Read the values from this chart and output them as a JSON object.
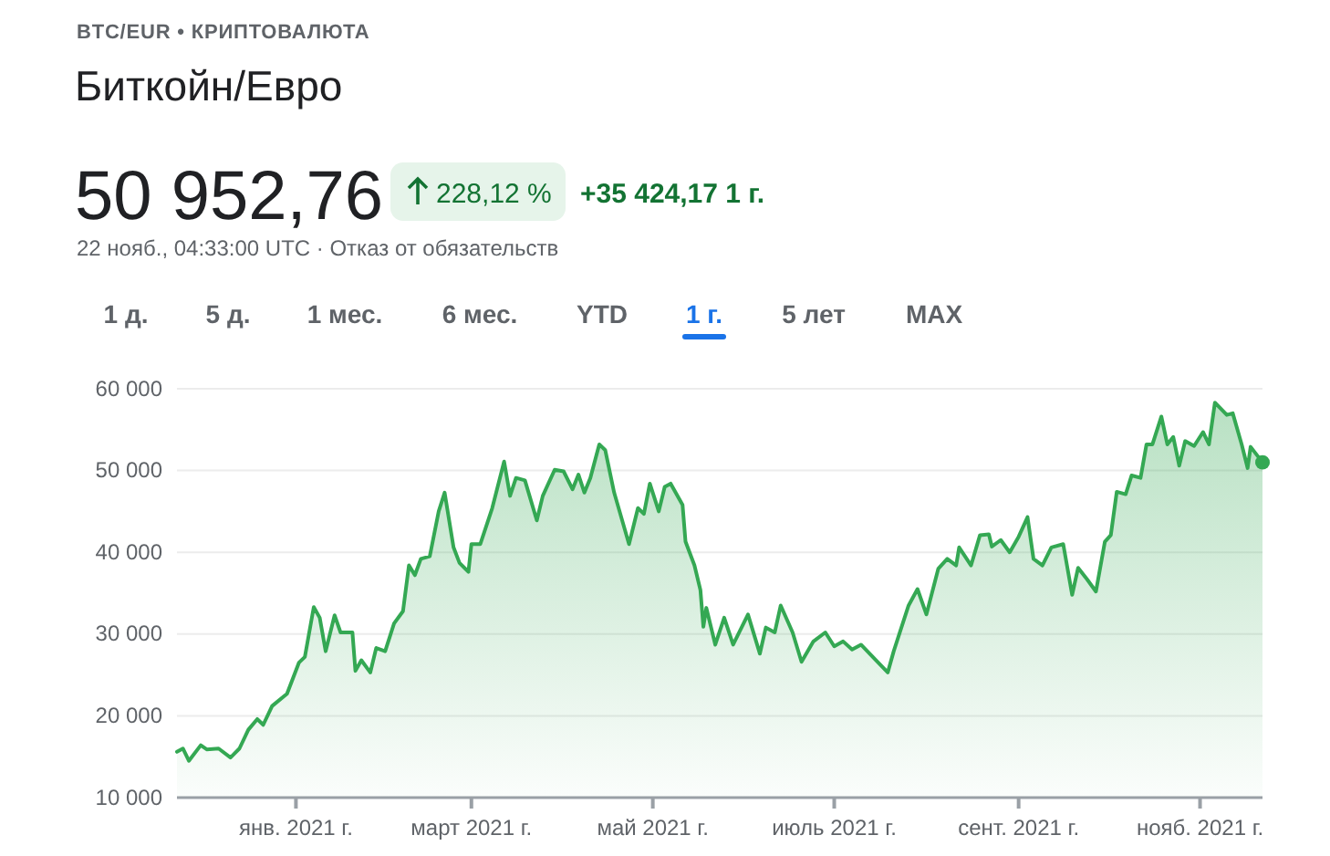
{
  "chart_data": {
    "type": "area",
    "title": "Биткойн/Евро",
    "subtitle": "BTC/EUR • КРИПТОВАЛЮТА",
    "annotations": [
      "50 952,76",
      "228,12 %",
      "+35 424,17 1 г.",
      "22 нояб., 04:33:00 UTC · Отказ от обязательств",
      "1 д.",
      "5 д.",
      "1 мес.",
      "6 мес.",
      "YTD",
      "1 г.",
      "5 лет",
      "MAX"
    ],
    "xlim": [
      "2020-11-22",
      "2021-11-22"
    ],
    "xticks": [
      {
        "value": "2021-01-01",
        "label": "янв. 2021 г."
      },
      {
        "value": "2021-03-01",
        "label": "март 2021 г."
      },
      {
        "value": "2021-05-01",
        "label": "май 2021 г."
      },
      {
        "value": "2021-07-01",
        "label": "июль 2021 г."
      },
      {
        "value": "2021-09-01",
        "label": "сент. 2021 г."
      },
      {
        "value": "2021-11-01",
        "label": "нояб. 2021 г."
      }
    ],
    "ylim": [
      10000,
      60000
    ],
    "yticks": [
      {
        "value": 10000,
        "label": "10 000"
      },
      {
        "value": 20000,
        "label": "20 000"
      },
      {
        "value": 30000,
        "label": "30 000"
      },
      {
        "value": 40000,
        "label": "40 000"
      },
      {
        "value": 50000,
        "label": "50 000"
      },
      {
        "value": 60000,
        "label": "60 000"
      }
    ],
    "grid": "y",
    "marker": "none",
    "line_style": "solid",
    "series": [
      {
        "color": "#34a853",
        "x": [
          "2020-11-22",
          "2020-11-24",
          "2020-11-26",
          "2020-11-30",
          "2020-12-02",
          "2020-12-06",
          "2020-12-10",
          "2020-12-13",
          "2020-12-16",
          "2020-12-19",
          "2020-12-21",
          "2020-12-24",
          "2020-12-29",
          "2021-01-02",
          "2021-01-04",
          "2021-01-07",
          "2021-01-09",
          "2021-01-11",
          "2021-01-14",
          "2021-01-16",
          "2021-01-20",
          "2021-01-21",
          "2021-01-23",
          "2021-01-26",
          "2021-01-28",
          "2021-01-31",
          "2021-02-03",
          "2021-02-06",
          "2021-02-08",
          "2021-02-10",
          "2021-02-12",
          "2021-02-15",
          "2021-02-18",
          "2021-02-20",
          "2021-02-23",
          "2021-02-25",
          "2021-02-28",
          "2021-03-01",
          "2021-03-04",
          "2021-03-08",
          "2021-03-12",
          "2021-03-14",
          "2021-03-16",
          "2021-03-19",
          "2021-03-23",
          "2021-03-25",
          "2021-03-29",
          "2021-04-01",
          "2021-04-04",
          "2021-04-06",
          "2021-04-08",
          "2021-04-10",
          "2021-04-13",
          "2021-04-15",
          "2021-04-18",
          "2021-04-23",
          "2021-04-26",
          "2021-04-28",
          "2021-04-30",
          "2021-05-03",
          "2021-05-05",
          "2021-05-07",
          "2021-05-11",
          "2021-05-12",
          "2021-05-15",
          "2021-05-17",
          "2021-05-18",
          "2021-05-19",
          "2021-05-22",
          "2021-05-25",
          "2021-05-28",
          "2021-06-02",
          "2021-06-06",
          "2021-06-08",
          "2021-06-11",
          "2021-06-13",
          "2021-06-17",
          "2021-06-20",
          "2021-06-24",
          "2021-06-28",
          "2021-07-01",
          "2021-07-04",
          "2021-07-07",
          "2021-07-10",
          "2021-07-15",
          "2021-07-19",
          "2021-07-21",
          "2021-07-26",
          "2021-07-29",
          "2021-08-01",
          "2021-08-05",
          "2021-08-08",
          "2021-08-11",
          "2021-08-12",
          "2021-08-16",
          "2021-08-19",
          "2021-08-22",
          "2021-08-23",
          "2021-08-26",
          "2021-08-29",
          "2021-09-01",
          "2021-09-04",
          "2021-09-06",
          "2021-09-09",
          "2021-09-12",
          "2021-09-16",
          "2021-09-19",
          "2021-09-21",
          "2021-09-24",
          "2021-09-27",
          "2021-09-30",
          "2021-10-02",
          "2021-10-04",
          "2021-10-07",
          "2021-10-09",
          "2021-10-12",
          "2021-10-14",
          "2021-10-16",
          "2021-10-19",
          "2021-10-21",
          "2021-10-23",
          "2021-10-25",
          "2021-10-27",
          "2021-10-30",
          "2021-11-02",
          "2021-11-04",
          "2021-11-06",
          "2021-11-10",
          "2021-11-12",
          "2021-11-15",
          "2021-11-17",
          "2021-11-18",
          "2021-11-22"
        ],
        "values": [
          15600,
          16000,
          14500,
          16400,
          15900,
          16000,
          14900,
          16000,
          18300,
          19600,
          18900,
          21200,
          22700,
          26500,
          27200,
          33300,
          32000,
          27900,
          32300,
          30200,
          30200,
          25500,
          26800,
          25300,
          28300,
          27900,
          31300,
          32800,
          38400,
          37200,
          39200,
          39500,
          45000,
          47300,
          40600,
          38700,
          37600,
          41000,
          41000,
          45400,
          51100,
          46900,
          49100,
          48800,
          43900,
          46900,
          50100,
          49900,
          47700,
          49500,
          47300,
          49100,
          53200,
          52500,
          47300,
          41000,
          45400,
          44700,
          48400,
          45000,
          48000,
          48400,
          45800,
          41300,
          38400,
          35400,
          30900,
          33200,
          28700,
          32000,
          28700,
          32400,
          27600,
          30800,
          30200,
          33500,
          30200,
          26600,
          29100,
          30200,
          28500,
          29100,
          28100,
          28700,
          26800,
          25300,
          27900,
          33500,
          35500,
          32400,
          38000,
          39200,
          38400,
          40600,
          38400,
          42100,
          42200,
          40700,
          41500,
          40000,
          41900,
          44300,
          39200,
          38400,
          40600,
          41000,
          34800,
          38100,
          36700,
          35200,
          41300,
          42100,
          47400,
          47100,
          49400,
          49100,
          53200,
          53200,
          56600,
          53200,
          54100,
          50600,
          53600,
          53000,
          54700,
          53200,
          58300,
          56800,
          57000,
          53200,
          50300,
          52900,
          51000
        ]
      },
      {
        "type": "scatter",
        "color": "#34a853",
        "marker": "circle",
        "x": [
          "2021-11-22"
        ],
        "values": [
          51000
        ]
      }
    ]
  }
}
